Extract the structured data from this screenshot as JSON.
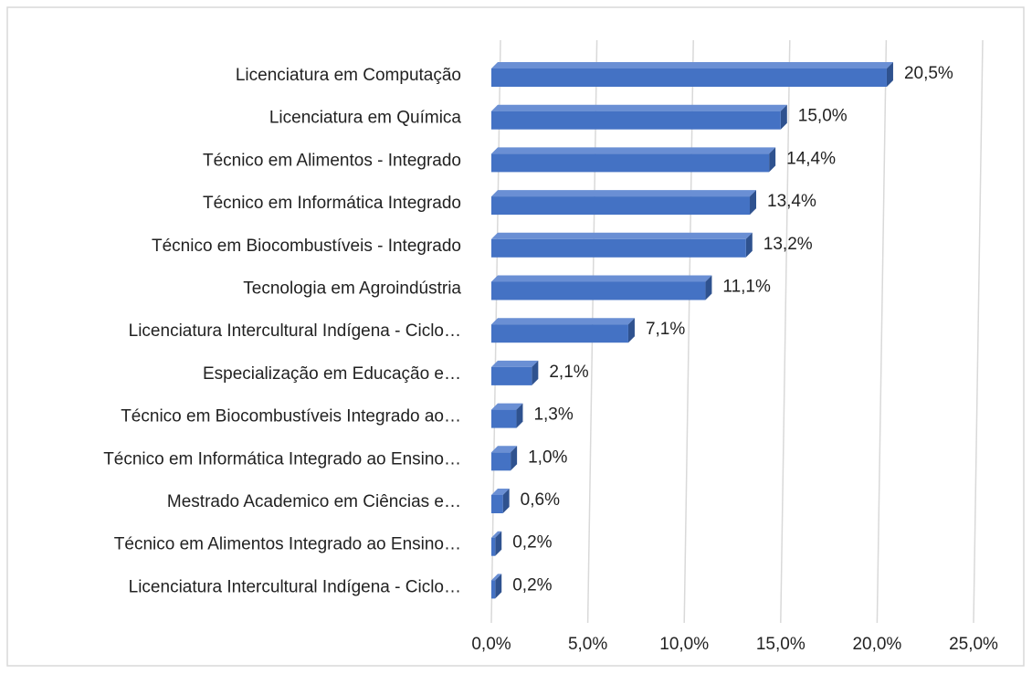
{
  "chart_data": {
    "type": "bar",
    "orientation": "horizontal",
    "categories": [
      "Licenciatura em Computação",
      "Licenciatura em Química",
      "Técnico em Alimentos - Integrado",
      "Técnico em Informática Integrado",
      "Técnico em Biocombustíveis - Integrado",
      "Tecnologia em Agroindústria",
      "Licenciatura Intercultural Indígena - Ciclo…",
      "Especialização em Educação e…",
      "Técnico em Biocombustíveis Integrado ao…",
      "Técnico em Informática Integrado ao Ensino…",
      "Mestrado Academico em Ciências e…",
      "Técnico em Alimentos Integrado ao Ensino…",
      "Licenciatura Intercultural Indígena - Ciclo…"
    ],
    "values": [
      20.5,
      15.0,
      14.4,
      13.4,
      13.2,
      11.1,
      7.1,
      2.1,
      1.3,
      1.0,
      0.6,
      0.2,
      0.2
    ],
    "value_labels": [
      "20,5%",
      "15,0%",
      "14,4%",
      "13,4%",
      "13,2%",
      "11,1%",
      "7,1%",
      "2,1%",
      "1,3%",
      "1,0%",
      "0,6%",
      "0,2%",
      "0,2%"
    ],
    "color": "#4472c4",
    "xlim": [
      0,
      25
    ],
    "xticks": [
      {
        "value": 0,
        "label": "0,0%"
      },
      {
        "value": 5,
        "label": "5,0%"
      },
      {
        "value": 10,
        "label": "10,0%"
      },
      {
        "value": 15,
        "label": "15,0%"
      },
      {
        "value": 20,
        "label": "20,0%"
      },
      {
        "value": 25,
        "label": "25,0%"
      }
    ],
    "grid": true
  }
}
